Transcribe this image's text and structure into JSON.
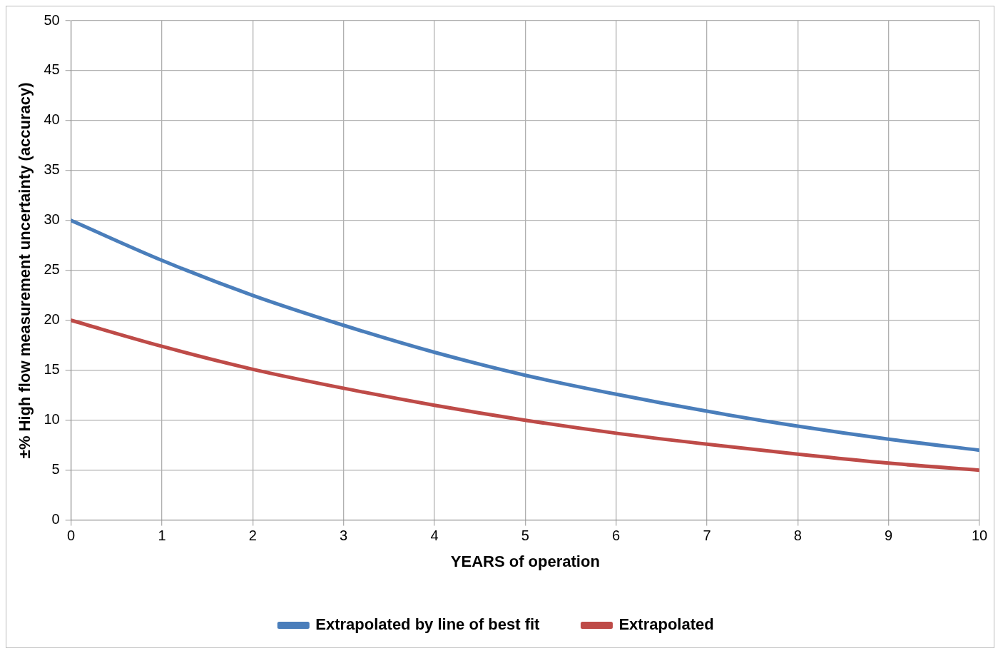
{
  "chart_data": {
    "type": "line",
    "xlabel": "YEARS of operation",
    "ylabel": "±% High flow measurement uncertainty (accuracy)",
    "x": [
      0,
      1,
      2,
      3,
      4,
      5,
      6,
      7,
      8,
      9,
      10
    ],
    "series": [
      {
        "name": "Extrapolated by line of best fit",
        "color": "#4a7ebb",
        "values": [
          30,
          26,
          22.5,
          19.5,
          16.8,
          14.5,
          12.6,
          10.9,
          9.4,
          8.1,
          7
        ]
      },
      {
        "name": "Extrapolated",
        "color": "#be4b48",
        "values": [
          20,
          17.4,
          15.1,
          13.2,
          11.5,
          10,
          8.7,
          7.6,
          6.6,
          5.7,
          5
        ]
      }
    ],
    "xlim": [
      0,
      10
    ],
    "xticks": [
      0,
      1,
      2,
      3,
      4,
      5,
      6,
      7,
      8,
      9,
      10
    ],
    "ylim": [
      0,
      50
    ],
    "yticks": [
      0,
      5,
      10,
      15,
      20,
      25,
      30,
      35,
      40,
      45,
      50
    ],
    "grid": true,
    "legend": "bottom",
    "marker": "none",
    "line_style": "solid"
  }
}
